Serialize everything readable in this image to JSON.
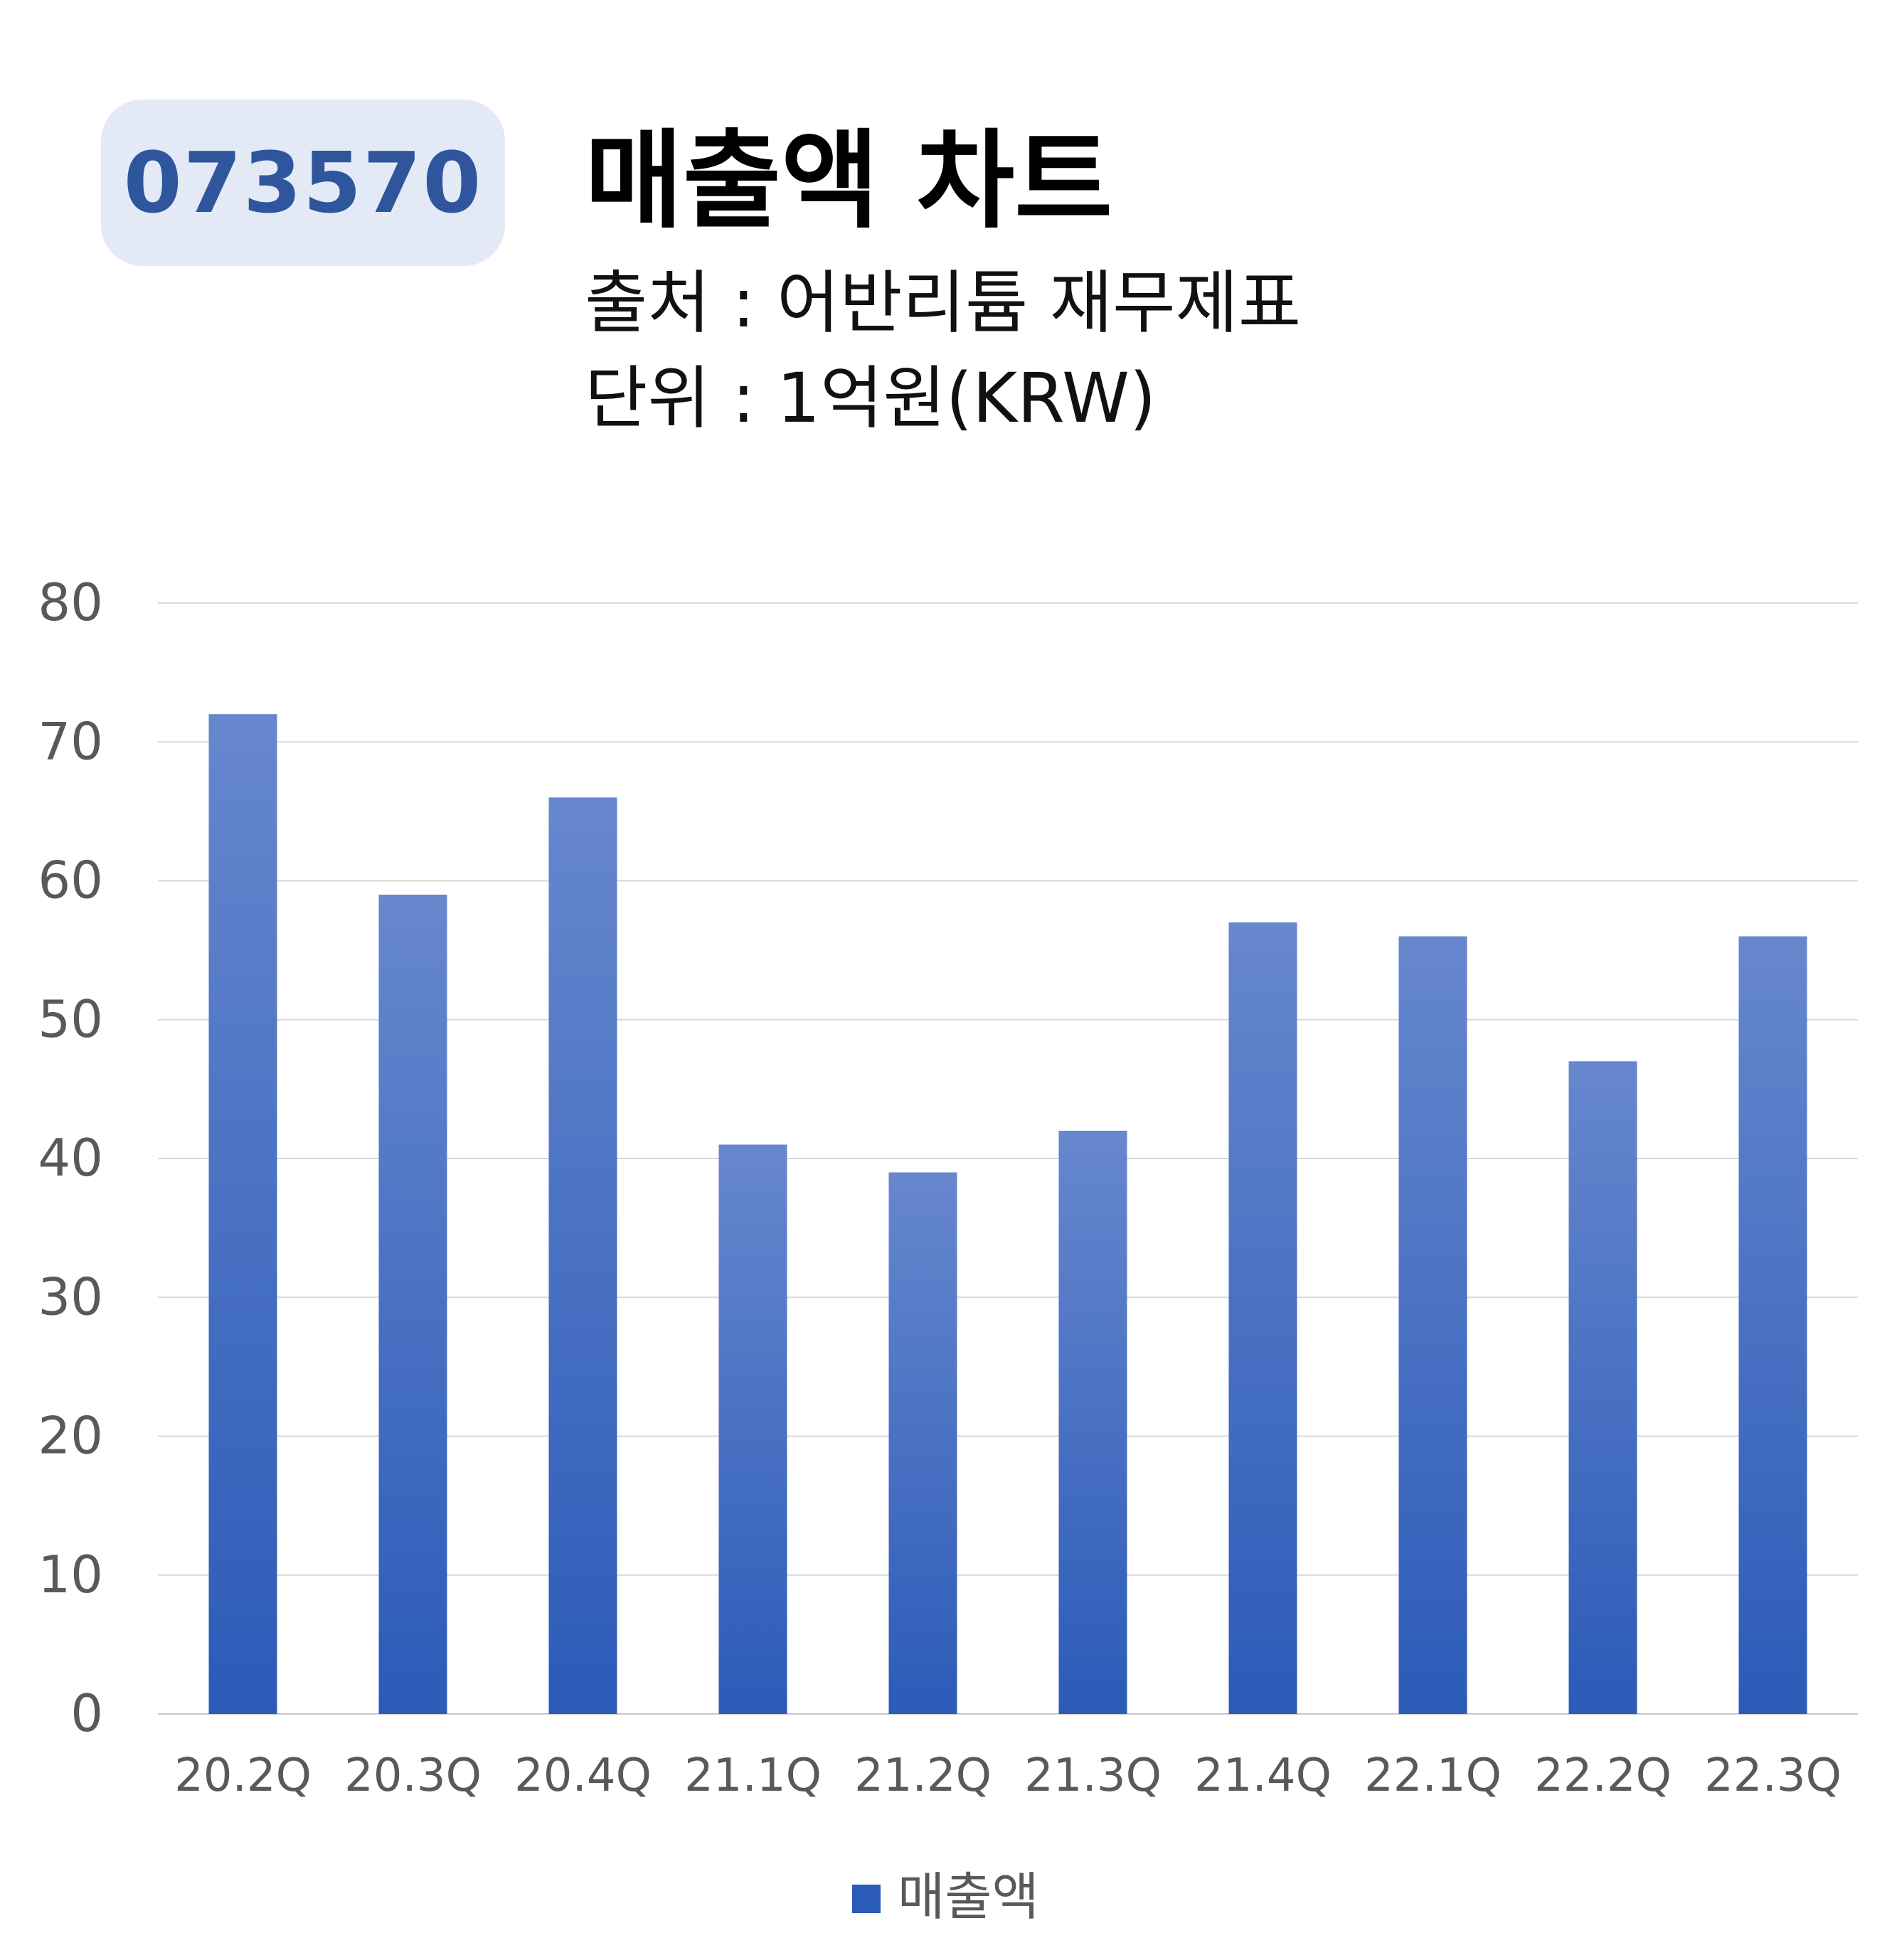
{
  "header": {
    "ticker": "073570",
    "title": "매출액 차트",
    "source": "출처 : 어반리튬 재무제표",
    "unit": "단위 : 1억원(KRW)"
  },
  "colors": {
    "bar_top": "#6787ce",
    "bar_bottom": "#2b5bb8",
    "grid": "#d9d9d9",
    "axis_text": "#595959"
  },
  "chart_data": {
    "type": "bar",
    "categories": [
      "20.2Q",
      "20.3Q",
      "20.4Q",
      "21.1Q",
      "21.2Q",
      "21.3Q",
      "21.4Q",
      "22.1Q",
      "22.2Q",
      "22.3Q"
    ],
    "series": [
      {
        "name": "매출액",
        "values": [
          72,
          59,
          66,
          41,
          39,
          42,
          57,
          56,
          47,
          56
        ]
      }
    ],
    "ylim": [
      0,
      80
    ],
    "yticks": [
      0,
      10,
      20,
      30,
      40,
      50,
      60,
      70,
      80
    ],
    "grid": true,
    "legend": "bottom"
  }
}
